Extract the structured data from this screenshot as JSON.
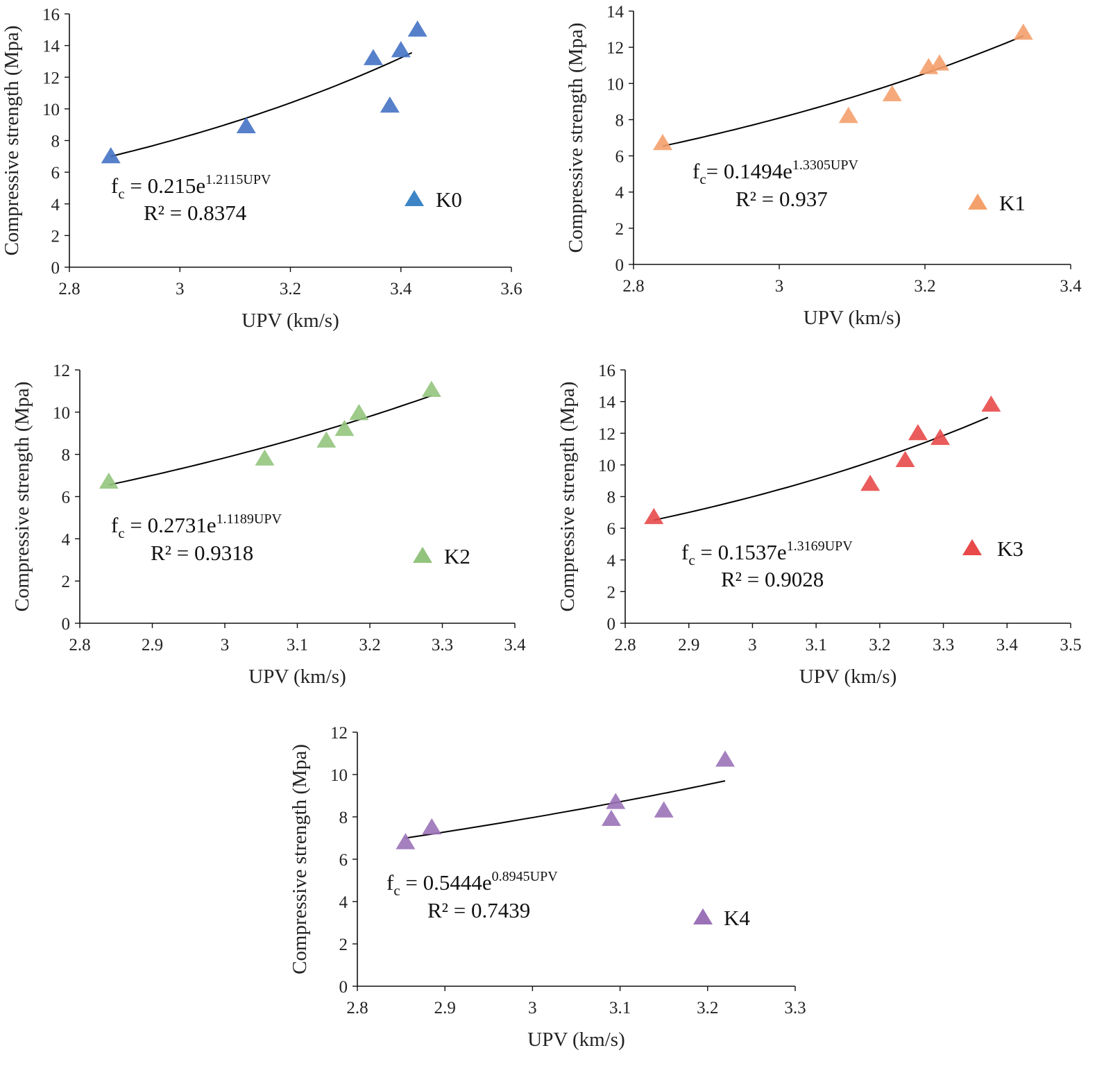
{
  "chart_data": [
    {
      "id": "K0",
      "type": "scatter",
      "legend": "K0",
      "color": "#4472C4",
      "legend_color": "#3D85C6",
      "xlabel": "UPV (km/s)",
      "ylabel": "Compressive strength (Mpa)",
      "xlim": [
        2.8,
        3.6
      ],
      "ylim": [
        0,
        16
      ],
      "xticks": [
        2.8,
        3,
        3.2,
        3.4,
        3.6
      ],
      "xtick_labels": [
        "2.8",
        "3",
        "3.2",
        "3.4",
        "3.6"
      ],
      "yticks": [
        0,
        2,
        4,
        6,
        8,
        10,
        12,
        14,
        16
      ],
      "ytick_labels": [
        "0",
        "2",
        "4",
        "6",
        "8",
        "10",
        "12",
        "14",
        "16"
      ],
      "points": [
        [
          2.875,
          7.0
        ],
        [
          3.12,
          8.9
        ],
        [
          3.35,
          13.2
        ],
        [
          3.38,
          10.2
        ],
        [
          3.4,
          13.7
        ],
        [
          3.43,
          15.0
        ]
      ],
      "fit": {
        "a": 0.215,
        "b": 1.2115,
        "x_range": [
          2.875,
          3.42
        ]
      },
      "equation": {
        "base": "f",
        "sub": "c",
        "coef": " = 0.215e",
        "exp": "1.2115UPV"
      },
      "r2": "R² = 0.8374"
    },
    {
      "id": "K1",
      "type": "scatter",
      "legend": "K1",
      "color": "#F4A06B",
      "legend_color": "#F4A06B",
      "xlabel": "UPV (km/s)",
      "ylabel": "Compressive strength (Mpa)",
      "xlim": [
        2.8,
        3.4
      ],
      "ylim": [
        0,
        14
      ],
      "xticks": [
        2.8,
        3,
        3.2,
        3.4
      ],
      "xtick_labels": [
        "2.8",
        "3",
        "3.2",
        "3.4"
      ],
      "yticks": [
        0,
        2,
        4,
        6,
        8,
        10,
        12,
        14
      ],
      "ytick_labels": [
        "0",
        "2",
        "4",
        "6",
        "8",
        "10",
        "12",
        "14"
      ],
      "points": [
        [
          2.84,
          6.7
        ],
        [
          3.095,
          8.2
        ],
        [
          3.155,
          9.4
        ],
        [
          3.205,
          10.9
        ],
        [
          3.22,
          11.1
        ],
        [
          3.335,
          12.8
        ]
      ],
      "fit": {
        "a": 0.1494,
        "b": 1.3305,
        "x_range": [
          2.84,
          3.335
        ]
      },
      "equation": {
        "base": "f",
        "sub": "c",
        "coef": "= 0.1494e",
        "exp": "1.3305UPV"
      },
      "r2": "R² = 0.937"
    },
    {
      "id": "K2",
      "type": "scatter",
      "legend": "K2",
      "color": "#93C47D",
      "legend_color": "#93C47D",
      "xlabel": "UPV (km/s)",
      "ylabel": "Compressive strength (Mpa)",
      "xlim": [
        2.8,
        3.4
      ],
      "ylim": [
        0,
        12
      ],
      "xticks": [
        2.8,
        2.9,
        3,
        3.1,
        3.2,
        3.3,
        3.4
      ],
      "xtick_labels": [
        "2.8",
        "2.9",
        "3",
        "3.1",
        "3.2",
        "3.3",
        "3.4"
      ],
      "yticks": [
        0,
        2,
        4,
        6,
        8,
        10,
        12
      ],
      "ytick_labels": [
        "0",
        "2",
        "4",
        "6",
        "8",
        "10",
        "12"
      ],
      "points": [
        [
          2.84,
          6.7
        ],
        [
          3.055,
          7.8
        ],
        [
          3.14,
          8.65
        ],
        [
          3.165,
          9.2
        ],
        [
          3.185,
          9.95
        ],
        [
          3.285,
          11.05
        ]
      ],
      "fit": {
        "a": 0.2731,
        "b": 1.1189,
        "x_range": [
          2.84,
          3.285
        ]
      },
      "equation": {
        "base": "f",
        "sub": "c",
        "coef": " = 0.2731e",
        "exp": "1.1189UPV"
      },
      "r2": "R² = 0.9318"
    },
    {
      "id": "K3",
      "type": "scatter",
      "legend": "K3",
      "color": "#E84A4A",
      "legend_color": "#E84A4A",
      "xlabel": "UPV (km/s)",
      "ylabel": "Compressive strength (Mpa)",
      "xlim": [
        2.8,
        3.5
      ],
      "ylim": [
        0,
        16
      ],
      "xticks": [
        2.8,
        2.9,
        3,
        3.1,
        3.2,
        3.3,
        3.4,
        3.5
      ],
      "xtick_labels": [
        "2.8",
        "2.9",
        "3",
        "3.1",
        "3.2",
        "3.3",
        "3.4",
        "3.5"
      ],
      "yticks": [
        0,
        2,
        4,
        6,
        8,
        10,
        12,
        14,
        16
      ],
      "ytick_labels": [
        "0",
        "2",
        "4",
        "6",
        "8",
        "10",
        "12",
        "14",
        "16"
      ],
      "points": [
        [
          2.845,
          6.7
        ],
        [
          3.185,
          8.8
        ],
        [
          3.24,
          10.3
        ],
        [
          3.26,
          12.0
        ],
        [
          3.295,
          11.7
        ],
        [
          3.375,
          13.8
        ]
      ],
      "fit": {
        "a": 0.1537,
        "b": 1.3169,
        "x_range": [
          2.845,
          3.37
        ]
      },
      "equation": {
        "base": "f",
        "sub": "c",
        "coef": " = 0.1537e",
        "exp": "1.3169UPV"
      },
      "r2": "R² = 0.9028"
    },
    {
      "id": "K4",
      "type": "scatter",
      "legend": "K4",
      "color": "#9B72B8",
      "legend_color": "#9B72B8",
      "xlabel": "UPV (km/s)",
      "ylabel": "Compressive strength (Mpa)",
      "xlim": [
        2.8,
        3.3
      ],
      "ylim": [
        0,
        12
      ],
      "xticks": [
        2.8,
        2.9,
        3,
        3.1,
        3.2,
        3.3
      ],
      "xtick_labels": [
        "2.8",
        "2.9",
        "3",
        "3.1",
        "3.2",
        "3.3"
      ],
      "yticks": [
        0,
        2,
        4,
        6,
        8,
        10,
        12
      ],
      "ytick_labels": [
        "0",
        "2",
        "4",
        "6",
        "8",
        "10",
        "12"
      ],
      "points": [
        [
          2.855,
          6.8
        ],
        [
          2.885,
          7.5
        ],
        [
          3.09,
          7.9
        ],
        [
          3.095,
          8.7
        ],
        [
          3.15,
          8.3
        ],
        [
          3.22,
          10.7
        ]
      ],
      "fit": {
        "a": 0.5444,
        "b": 0.8945,
        "x_range": [
          2.855,
          3.22
        ]
      },
      "equation": {
        "base": "f",
        "sub": "c",
        "coef": " = 0.5444e",
        "exp": "0.8945UPV"
      },
      "r2": "R² = 0.7439"
    }
  ]
}
